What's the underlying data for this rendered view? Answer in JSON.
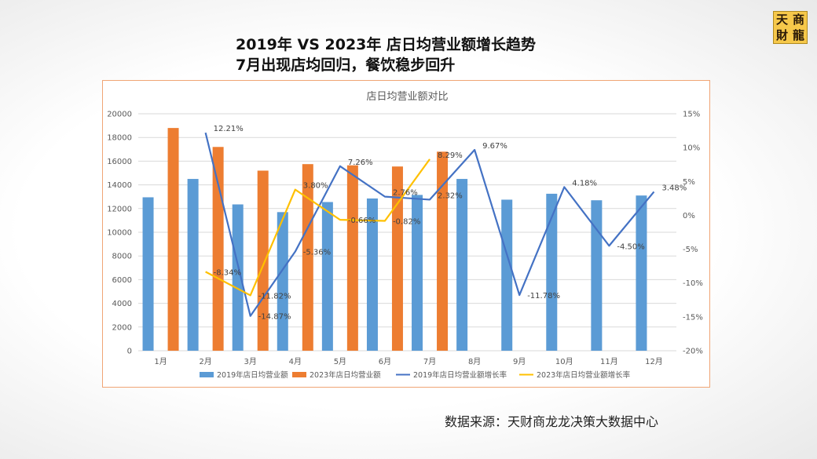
{
  "headline": {
    "line1": "2019年 VS 2023年 店日均营业额增长趋势",
    "line2": "7月出现店均回归，餐饮稳步回升"
  },
  "logo": {
    "chars": [
      "天",
      "商",
      "財",
      "龍"
    ]
  },
  "source": "数据来源：天财商龙龙决策大数据中心",
  "colors": {
    "bar2019": "#5b9bd5",
    "bar2023": "#ed7d31",
    "line2019": "#4472c4",
    "line2023": "#ffc000",
    "frame": "#f0a575"
  },
  "chart_data": {
    "type": "bar",
    "title": "店日均营业额对比",
    "categories": [
      "1月",
      "2月",
      "3月",
      "4月",
      "5月",
      "6月",
      "7月",
      "8月",
      "9月",
      "10月",
      "11月",
      "12月"
    ],
    "series": [
      {
        "name": "2019年店日均营业额",
        "type": "bar",
        "axis": "left",
        "values": [
          12950,
          14500,
          12350,
          11700,
          12550,
          12850,
          13150,
          14500,
          12750,
          13250,
          12700,
          13100
        ]
      },
      {
        "name": "2023年店日均营业额",
        "type": "bar",
        "axis": "left",
        "values": [
          18800,
          17200,
          15200,
          15750,
          15650,
          15550,
          16800,
          null,
          null,
          null,
          null,
          null
        ]
      },
      {
        "name": "2019年店日均营业额增长率",
        "type": "line",
        "axis": "right",
        "values": [
          null,
          12.21,
          -14.87,
          -5.36,
          7.26,
          2.76,
          2.32,
          9.67,
          -11.78,
          4.18,
          -4.5,
          3.48
        ],
        "labels": [
          null,
          "12.21%",
          "-14.87%",
          "-5.36%",
          "7.26%",
          "2.76%",
          "2.32%",
          "9.67%",
          "-11.78%",
          "4.18%",
          "-4.50%",
          "3.48%"
        ]
      },
      {
        "name": "2023年店日均营业额增长率",
        "type": "line",
        "axis": "right",
        "values": [
          null,
          -8.34,
          -11.82,
          3.8,
          -0.66,
          -0.82,
          8.29,
          null,
          null,
          null,
          null,
          null
        ],
        "labels": [
          null,
          "-8.34%",
          "-11.82%",
          "3.80%",
          "-0.66%",
          "-0.82%",
          "8.29%",
          null,
          null,
          null,
          null,
          null
        ]
      }
    ],
    "y_left": {
      "min": 0,
      "max": 20000,
      "ticks": [
        "0",
        "2000",
        "4000",
        "6000",
        "8000",
        "10000",
        "12000",
        "14000",
        "16000",
        "18000",
        "20000"
      ]
    },
    "y_right": {
      "min": -20,
      "max": 15,
      "ticks": [
        "-20%",
        "-15%",
        "-10%",
        "-5%",
        "0%",
        "5%",
        "10%",
        "15%"
      ]
    },
    "grid": true,
    "legend_position": "bottom"
  }
}
